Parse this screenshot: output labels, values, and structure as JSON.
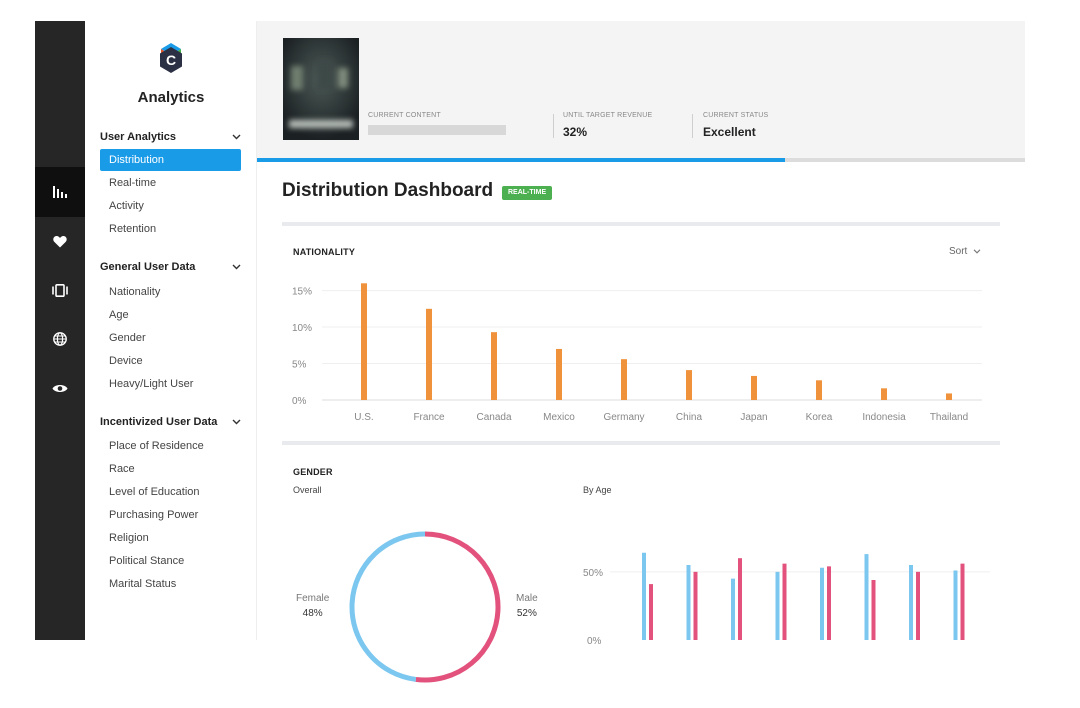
{
  "app": {
    "brand": "Analytics",
    "logo_icon": "hexagon-c-logo"
  },
  "rail": {
    "items": [
      {
        "icon": "bar-chart-icon",
        "active": true
      },
      {
        "icon": "heart-icon",
        "active": false
      },
      {
        "icon": "carousel-icon",
        "active": false
      },
      {
        "icon": "globe-icon",
        "active": false
      },
      {
        "icon": "eye-icon",
        "active": false
      }
    ]
  },
  "sidebar": {
    "groups": [
      {
        "title": "User Analytics",
        "items": [
          "Distribution",
          "Real-time",
          "Activity",
          "Retention"
        ],
        "active": "Distribution"
      },
      {
        "title": "General User Data",
        "items": [
          "Nationality",
          "Age",
          "Gender",
          "Device",
          "Heavy/Light User"
        ]
      },
      {
        "title": "Incentivized User Data",
        "items": [
          "Place of Residence",
          "Race",
          "Level of Education",
          "Purchasing Power",
          "Religion",
          "Political Stance",
          "Marital Status"
        ]
      }
    ]
  },
  "header": {
    "current_content_label": "CURRENT CONTENT",
    "until_target_label": "UNTIL TARGET REVENUE",
    "until_target_value": "32%",
    "status_label": "CURRENT STATUS",
    "status_value": "Excellent",
    "progress_fraction": 0.687
  },
  "page": {
    "title": "Distribution Dashboard",
    "badge": "REAL-TIME"
  },
  "nationality": {
    "title": "NATIONALITY",
    "sort_label": "Sort"
  },
  "gender": {
    "title": "GENDER",
    "overall_label": "Overall",
    "by_age_label": "By Age",
    "female_label": "Female",
    "female_pct": "48%",
    "male_label": "Male",
    "male_pct": "52%"
  },
  "colors": {
    "accent": "#1a9be8",
    "orange": "#f0923c",
    "female": "#7cc7f0",
    "male": "#e2527c",
    "badge": "#4caf50"
  },
  "chart_data": [
    {
      "type": "bar",
      "title": "NATIONALITY",
      "categories": [
        "U.S.",
        "France",
        "Canada",
        "Mexico",
        "Germany",
        "China",
        "Japan",
        "Korea",
        "Indonesia",
        "Thailand"
      ],
      "values": [
        16,
        12.5,
        9.3,
        7,
        5.6,
        4.1,
        3.3,
        2.7,
        1.6,
        0.9
      ],
      "yticks": [
        "0%",
        "5%",
        "10%",
        "15%"
      ],
      "ylim": [
        0,
        17
      ],
      "grid": true
    },
    {
      "type": "pie",
      "title": "Overall",
      "slices": [
        {
          "label": "Female",
          "value": 48
        },
        {
          "label": "Male",
          "value": 52
        }
      ]
    },
    {
      "type": "bar",
      "title": "By Age",
      "group_count": 8,
      "series": [
        {
          "values": [
            64,
            55,
            45,
            50,
            53,
            63,
            55,
            51
          ]
        },
        {
          "values": [
            41,
            50,
            60,
            56,
            54,
            44,
            50,
            56
          ]
        }
      ],
      "yticks": [
        "0%",
        "50%"
      ],
      "ylim": [
        0,
        66
      ]
    }
  ]
}
